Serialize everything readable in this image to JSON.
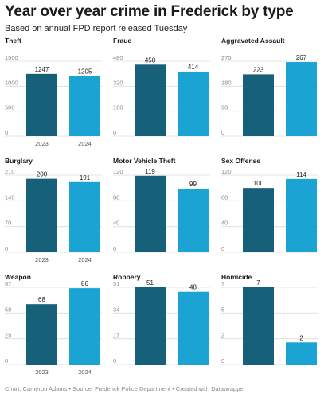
{
  "title": "Year over year crime in Frederick by type",
  "subtitle": "Based on annual FPD report released Tuesday",
  "footer": "Chart: Cameron Adams • Source: Frederick Police Department • Created with Datawrapper",
  "colors": {
    "year_2023": "#17607a",
    "year_2024": "#1aa3d3",
    "grid": "#dcdcdc",
    "tick": "#8c8c8c"
  },
  "chart_data": [
    {
      "type": "bar",
      "title": "Theft",
      "categories": [
        "2023",
        "2024"
      ],
      "values": [
        1247,
        1205
      ],
      "ylim": [
        0,
        1500
      ],
      "yticks": [
        "1500",
        "1000",
        "500",
        "0"
      ],
      "show_xlabels": true
    },
    {
      "type": "bar",
      "title": "Fraud",
      "categories": [
        "2023",
        "2024"
      ],
      "values": [
        458,
        414
      ],
      "ylim": [
        0,
        480
      ],
      "yticks": [
        "480",
        "320",
        "160",
        "0"
      ],
      "show_xlabels": false
    },
    {
      "type": "bar",
      "title": "Aggravated Assault",
      "categories": [
        "2023",
        "2024"
      ],
      "values": [
        223,
        267
      ],
      "ylim": [
        0,
        270
      ],
      "yticks": [
        "270",
        "180",
        "90",
        "0"
      ],
      "show_xlabels": false
    },
    {
      "type": "bar",
      "title": "Burglary",
      "categories": [
        "2023",
        "2024"
      ],
      "values": [
        200,
        191
      ],
      "ylim": [
        0,
        210
      ],
      "yticks": [
        "210",
        "140",
        "70",
        "0"
      ],
      "show_xlabels": true
    },
    {
      "type": "bar",
      "title": "Motor Vehicle Theft",
      "categories": [
        "2023",
        "2024"
      ],
      "values": [
        119,
        99
      ],
      "ylim": [
        0,
        120
      ],
      "yticks": [
        "120",
        "80",
        "40",
        "0"
      ],
      "show_xlabels": false
    },
    {
      "type": "bar",
      "title": "Sex Offense",
      "categories": [
        "2023",
        "2024"
      ],
      "values": [
        100,
        114
      ],
      "ylim": [
        0,
        120
      ],
      "yticks": [
        "120",
        "80",
        "40",
        "0"
      ],
      "show_xlabels": false
    },
    {
      "type": "bar",
      "title": "Weapon",
      "categories": [
        "2023",
        "2024"
      ],
      "values": [
        68,
        86
      ],
      "ylim": [
        0,
        87
      ],
      "yticks": [
        "87",
        "58",
        "29",
        "0"
      ],
      "show_xlabels": true
    },
    {
      "type": "bar",
      "title": "Robbery",
      "categories": [
        "2023",
        "2024"
      ],
      "values": [
        51,
        48
      ],
      "ylim": [
        0,
        51
      ],
      "yticks": [
        "51",
        "34",
        "17",
        "0"
      ],
      "show_xlabels": false
    },
    {
      "type": "bar",
      "title": "Homicide",
      "categories": [
        "2023",
        "2024"
      ],
      "values": [
        7,
        2
      ],
      "ylim": [
        0,
        7
      ],
      "yticks": [
        "7",
        "5",
        "2",
        "0"
      ],
      "show_xlabels": false
    }
  ]
}
